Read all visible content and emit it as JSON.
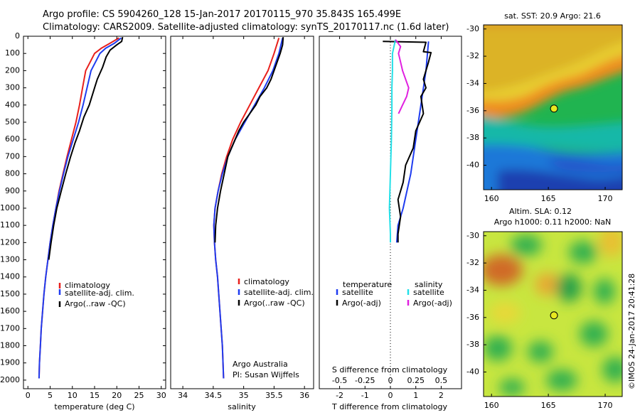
{
  "header": {
    "line1": "Argo profile: CS 5904260_128 15-Jan-2017 20170115_970 35.843S 165.499E",
    "line2": "Climatology: CARS2009. Satellite-adjusted climatology: synTS_20170117.nc (1.6d later)"
  },
  "colors": {
    "climatology": "#e8201c",
    "satellite": "#1f3cf0",
    "argo": "#000000",
    "satellite_s": "#24e0e8",
    "argo_s": "#e020e0"
  },
  "chart_data": [
    {
      "type": "line",
      "id": "temperature",
      "xlabel": "temperature (deg C)",
      "xlim": [
        -1,
        31
      ],
      "xticks": [
        0,
        5,
        10,
        15,
        20,
        25,
        30
      ],
      "ylim": [
        0,
        2050
      ],
      "yticks": [
        0,
        100,
        200,
        300,
        400,
        500,
        600,
        700,
        800,
        900,
        1000,
        1100,
        1200,
        1300,
        1400,
        1500,
        1600,
        1700,
        1800,
        1900,
        2000
      ],
      "legend": [
        "climatology",
        "satellite-adj. clim.",
        "Argo(..raw -QC)"
      ],
      "series": [
        {
          "name": "climatology",
          "color": "climatology",
          "points": [
            [
              20.5,
              10
            ],
            [
              18.5,
              40
            ],
            [
              16.5,
              70
            ],
            [
              15,
              100
            ],
            [
              14,
              150
            ],
            [
              13,
              200
            ],
            [
              12.3,
              300
            ],
            [
              11.6,
              400
            ],
            [
              10.8,
              500
            ],
            [
              9.8,
              600
            ],
            [
              8.8,
              700
            ],
            [
              7.9,
              800
            ],
            [
              7,
              900
            ],
            [
              6.3,
              1000
            ],
            [
              5.6,
              1100
            ],
            [
              5,
              1200
            ],
            [
              4.5,
              1300
            ],
            [
              4,
              1400
            ],
            [
              3.6,
              1500
            ],
            [
              3.3,
              1600
            ],
            [
              3,
              1700
            ],
            [
              2.8,
              1800
            ],
            [
              2.6,
              1900
            ],
            [
              2.5,
              1990
            ]
          ]
        },
        {
          "name": "satellite-adj. clim.",
          "color": "satellite",
          "points": [
            [
              21,
              10
            ],
            [
              19.5,
              40
            ],
            [
              17.5,
              70
            ],
            [
              16.2,
              100
            ],
            [
              15.2,
              150
            ],
            [
              14.2,
              200
            ],
            [
              13.3,
              300
            ],
            [
              12.4,
              400
            ],
            [
              11.4,
              500
            ],
            [
              10.2,
              600
            ],
            [
              9,
              700
            ],
            [
              8,
              800
            ],
            [
              7.1,
              900
            ],
            [
              6.3,
              1000
            ],
            [
              5.6,
              1100
            ],
            [
              5,
              1200
            ],
            [
              4.5,
              1300
            ],
            [
              4,
              1400
            ],
            [
              3.6,
              1500
            ],
            [
              3.3,
              1600
            ],
            [
              3,
              1700
            ],
            [
              2.8,
              1800
            ],
            [
              2.6,
              1900
            ],
            [
              2.5,
              1990
            ]
          ]
        },
        {
          "name": "Argo(..raw -QC)",
          "color": "argo",
          "points": [
            [
              21.3,
              5
            ],
            [
              21.1,
              30
            ],
            [
              20,
              50
            ],
            [
              18.5,
              80
            ],
            [
              17.6,
              120
            ],
            [
              16.8,
              180
            ],
            [
              15.6,
              250
            ],
            [
              15,
              300
            ],
            [
              13.8,
              400
            ],
            [
              12.6,
              470
            ],
            [
              11.6,
              550
            ],
            [
              10.6,
              620
            ],
            [
              9.6,
              700
            ],
            [
              8.5,
              800
            ],
            [
              7.5,
              900
            ],
            [
              6.5,
              1000
            ],
            [
              5.8,
              1100
            ],
            [
              5.2,
              1200
            ],
            [
              4.7,
              1300
            ]
          ]
        }
      ]
    },
    {
      "type": "line",
      "id": "salinity",
      "xlabel": "salinity",
      "xlim": [
        33.8,
        36.15
      ],
      "xticks": [
        34,
        34.5,
        35,
        35.5,
        36
      ],
      "xtick_labels": [
        "34",
        "34.5",
        "35",
        "35.5",
        "36"
      ],
      "ylim": [
        0,
        2050
      ],
      "legend": [
        "climatology",
        "satellite-adj. clim.",
        "Argo(..raw -QC)"
      ],
      "annotation": [
        "Argo Australia",
        "PI: Susan Wijffels"
      ],
      "series": [
        {
          "name": "climatology",
          "color": "climatology",
          "points": [
            [
              35.58,
              10
            ],
            [
              35.5,
              100
            ],
            [
              35.4,
              200
            ],
            [
              35.25,
              300
            ],
            [
              35.1,
              400
            ],
            [
              34.95,
              500
            ],
            [
              34.82,
              600
            ],
            [
              34.72,
              700
            ],
            [
              34.64,
              800
            ],
            [
              34.58,
              900
            ],
            [
              34.53,
              1000
            ],
            [
              34.51,
              1100
            ],
            [
              34.52,
              1200
            ],
            [
              34.54,
              1300
            ],
            [
              34.57,
              1400
            ],
            [
              34.59,
              1500
            ],
            [
              34.61,
              1600
            ],
            [
              34.63,
              1700
            ],
            [
              34.65,
              1800
            ],
            [
              34.66,
              1900
            ],
            [
              34.67,
              1990
            ]
          ]
        },
        {
          "name": "satellite-adj. clim.",
          "color": "satellite",
          "points": [
            [
              35.64,
              10
            ],
            [
              35.58,
              100
            ],
            [
              35.48,
              200
            ],
            [
              35.34,
              300
            ],
            [
              35.18,
              400
            ],
            [
              35.02,
              500
            ],
            [
              34.86,
              600
            ],
            [
              34.74,
              700
            ],
            [
              34.65,
              800
            ],
            [
              34.58,
              900
            ],
            [
              34.53,
              1000
            ],
            [
              34.51,
              1100
            ],
            [
              34.52,
              1200
            ],
            [
              34.54,
              1300
            ],
            [
              34.57,
              1400
            ],
            [
              34.59,
              1500
            ],
            [
              34.61,
              1600
            ],
            [
              34.63,
              1700
            ],
            [
              34.65,
              1800
            ],
            [
              34.66,
              1900
            ],
            [
              34.67,
              1990
            ]
          ]
        },
        {
          "name": "Argo(..raw -QC)",
          "color": "argo",
          "points": [
            [
              35.65,
              5
            ],
            [
              35.64,
              50
            ],
            [
              35.6,
              100
            ],
            [
              35.55,
              150
            ],
            [
              35.5,
              200
            ],
            [
              35.45,
              250
            ],
            [
              35.38,
              300
            ],
            [
              35.27,
              350
            ],
            [
              35.2,
              400
            ],
            [
              35.1,
              450
            ],
            [
              35,
              500
            ],
            [
              34.92,
              550
            ],
            [
              34.86,
              600
            ],
            [
              34.8,
              650
            ],
            [
              34.74,
              700
            ],
            [
              34.68,
              800
            ],
            [
              34.62,
              900
            ],
            [
              34.57,
              1000
            ],
            [
              34.54,
              1100
            ],
            [
              34.53,
              1200
            ]
          ]
        }
      ]
    },
    {
      "type": "line",
      "id": "difference",
      "xlabel": "T difference from climatology",
      "xlabel_top": "S difference from climatology",
      "xlim": [
        -2.8,
        2.8
      ],
      "xticks": [
        -2,
        -1,
        0,
        1,
        2
      ],
      "s_ticks": [
        -0.5,
        -0.25,
        0,
        0.25,
        0.5
      ],
      "s_tick_labels": [
        "-0.5",
        "-0.25",
        "0",
        "0.25",
        "0.5"
      ],
      "ylim": [
        0,
        2050
      ],
      "legend_headers": [
        "temperature",
        "salinity"
      ],
      "legend": [
        "satellite",
        "Argo(-adj)",
        "satellite",
        "Argo(-adj)"
      ],
      "series": [
        {
          "name": "temperature satellite",
          "color": "satellite",
          "points": [
            [
              1.5,
              30
            ],
            [
              1.4,
              200
            ],
            [
              1.2,
              400
            ],
            [
              1,
              600
            ],
            [
              0.8,
              800
            ],
            [
              0.5,
              1000
            ],
            [
              0.3,
              1100
            ],
            [
              0.25,
              1200
            ]
          ]
        },
        {
          "name": "temperature Argo(-adj)",
          "color": "argo",
          "points": [
            [
              -0.3,
              30
            ],
            [
              1.4,
              35
            ],
            [
              1.3,
              90
            ],
            [
              1.6,
              95
            ],
            [
              1.5,
              150
            ],
            [
              1.3,
              250
            ],
            [
              1.4,
              300
            ],
            [
              1.2,
              350
            ],
            [
              1.3,
              450
            ],
            [
              1,
              550
            ],
            [
              0.9,
              650
            ],
            [
              0.6,
              750
            ],
            [
              0.5,
              850
            ],
            [
              0.3,
              950
            ],
            [
              0.4,
              1050
            ],
            [
              0.3,
              1150
            ],
            [
              0.3,
              1200
            ]
          ]
        },
        {
          "name": "salinity satellite",
          "color": "satellite_s",
          "points": [
            [
              0.05,
              20
            ],
            [
              0.02,
              100
            ],
            [
              0.02,
              200
            ],
            [
              0.015,
              300
            ],
            [
              0.015,
              420
            ],
            [
              0.01,
              600
            ],
            [
              0.0,
              800
            ],
            [
              -0.01,
              1000
            ],
            [
              0,
              1150
            ],
            [
              0,
              1200
            ]
          ]
        },
        {
          "name": "salinity Argo(-adj)",
          "color": "argo_s",
          "points": [
            [
              0.05,
              20
            ],
            [
              0.1,
              60
            ],
            [
              0.08,
              100
            ],
            [
              0.1,
              150
            ],
            [
              0.12,
              200
            ],
            [
              0.18,
              300
            ],
            [
              0.16,
              350
            ],
            [
              0.12,
              400
            ],
            [
              0.08,
              450
            ]
          ]
        }
      ]
    },
    {
      "type": "heatmap",
      "id": "sst_map",
      "title": "sat. SST: 20.9 Argo: 21.6",
      "xlim": [
        159.3,
        171.5
      ],
      "ylim": [
        -41.8,
        -29.7
      ],
      "xticks": [
        160,
        165,
        170
      ],
      "yticks": [
        -30,
        -32,
        -34,
        -36,
        -38,
        -40
      ],
      "marker": [
        165.499,
        -35.843
      ]
    },
    {
      "type": "heatmap",
      "id": "sla_map",
      "title": "Altim. SLA: 0.12",
      "subtitle": "Argo h1000: 0.11 h2000: NaN",
      "xlim": [
        159.3,
        171.5
      ],
      "ylim": [
        -41.8,
        -29.7
      ],
      "xticks": [
        160,
        165,
        170
      ],
      "yticks": [
        -30,
        -32,
        -34,
        -36,
        -38,
        -40
      ],
      "marker": [
        165.499,
        -35.843
      ]
    }
  ],
  "side_label": "©IMOS 24-Jan-2017 20:41:28"
}
